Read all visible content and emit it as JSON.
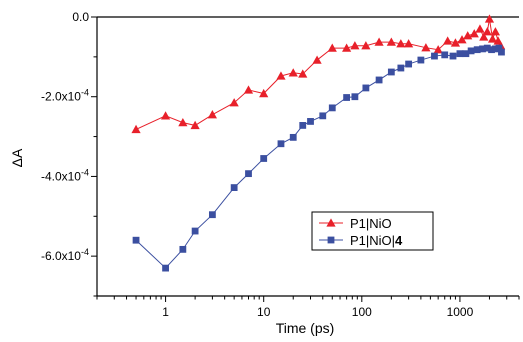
{
  "chart_data": {
    "type": "scatter",
    "title": "",
    "xlabel": "Time (ps)",
    "ylabel": "ΔA",
    "x_scale": "log",
    "xlim": [
      0.2,
      4000
    ],
    "ylim": [
      -0.0007,
      0.0
    ],
    "x_ticks": [
      {
        "value": 1,
        "label": "1"
      },
      {
        "value": 10,
        "label": "10"
      },
      {
        "value": 100,
        "label": "100"
      },
      {
        "value": 1000,
        "label": "1000"
      }
    ],
    "y_ticks": [
      {
        "value": 0.0,
        "label": "0.0"
      },
      {
        "value": -0.0002,
        "label": "-2.0x10-4",
        "base": "-2.0x10",
        "exp": "-4"
      },
      {
        "value": -0.0004,
        "label": "-4.0x10-4",
        "base": "-4.0x10",
        "exp": "-4"
      },
      {
        "value": -0.0006,
        "label": "-6.0x10-4",
        "base": "-6.0x10",
        "exp": "-4"
      }
    ],
    "grid": false,
    "legend_position": "center-right",
    "series": [
      {
        "name": "P1|NiO",
        "color": "#e8202a",
        "marker": "triangle",
        "points": [
          [
            0.5,
            -0.000282
          ],
          [
            1.0,
            -0.000248
          ],
          [
            1.5,
            -0.000265
          ],
          [
            2.0,
            -0.000272
          ],
          [
            3.0,
            -0.000245
          ],
          [
            5.0,
            -0.000215
          ],
          [
            7.0,
            -0.000183
          ],
          [
            10.0,
            -0.000192
          ],
          [
            15.0,
            -0.000148
          ],
          [
            20.0,
            -0.00014
          ],
          [
            25.0,
            -0.000143
          ],
          [
            35.0,
            -0.000108
          ],
          [
            50.0,
            -7.8e-05
          ],
          [
            70.0,
            -7.8e-05
          ],
          [
            85.0,
            -7.2e-05
          ],
          [
            110.0,
            -7.2e-05
          ],
          [
            150.0,
            -6.3e-05
          ],
          [
            200.0,
            -6.3e-05
          ],
          [
            250.0,
            -6.7e-05
          ],
          [
            300.0,
            -6.7e-05
          ],
          [
            450.0,
            -7.7e-05
          ],
          [
            600.0,
            -8.2e-05
          ],
          [
            750.0,
            -6e-05
          ],
          [
            900.0,
            -6.5e-05
          ],
          [
            1050.0,
            -5.7e-05
          ],
          [
            1200.0,
            -4.7e-05
          ],
          [
            1400.0,
            -4.2e-05
          ],
          [
            1600.0,
            -3e-05
          ],
          [
            1750.0,
            -5e-05
          ],
          [
            1900.0,
            -3.7e-05
          ],
          [
            2000.0,
            -5e-06
          ],
          [
            2150.0,
            -5.5e-05
          ],
          [
            2300.0,
            -3.7e-05
          ],
          [
            2450.0,
            -6e-05
          ],
          [
            2600.0,
            -7.2e-05
          ]
        ]
      },
      {
        "name": "P1|NiO|4",
        "name_plain": "P1|NiO|",
        "name_bold": "4",
        "color": "#3b4fa0",
        "marker": "square",
        "points": [
          [
            0.5,
            -0.00056
          ],
          [
            1.0,
            -0.00063
          ],
          [
            1.5,
            -0.000583
          ],
          [
            2.0,
            -0.000537
          ],
          [
            3.0,
            -0.000496
          ],
          [
            5.0,
            -0.000428
          ],
          [
            7.0,
            -0.000393
          ],
          [
            10.0,
            -0.000355
          ],
          [
            15.0,
            -0.000318
          ],
          [
            20.0,
            -0.000302
          ],
          [
            25.0,
            -0.000272
          ],
          [
            30.0,
            -0.000262
          ],
          [
            40.0,
            -0.000248
          ],
          [
            50.0,
            -0.000228
          ],
          [
            70.0,
            -0.000202
          ],
          [
            85.0,
            -0.0002
          ],
          [
            110.0,
            -0.000178
          ],
          [
            150.0,
            -0.000158
          ],
          [
            200.0,
            -0.000138
          ],
          [
            250.0,
            -0.000128
          ],
          [
            300.0,
            -0.000118
          ],
          [
            400.0,
            -0.000108
          ],
          [
            550.0,
            -9.8e-05
          ],
          [
            700.0,
            -9.5e-05
          ],
          [
            850.0,
            -9.8e-05
          ],
          [
            1000.0,
            -9.2e-05
          ],
          [
            1150.0,
            -9.2e-05
          ],
          [
            1300.0,
            -8.5e-05
          ],
          [
            1500.0,
            -8.2e-05
          ],
          [
            1700.0,
            -8e-05
          ],
          [
            1900.0,
            -7.8e-05
          ],
          [
            2100.0,
            -8.2e-05
          ],
          [
            2300.0,
            -8e-05
          ],
          [
            2500.0,
            -7.8e-05
          ],
          [
            2650.0,
            -8.8e-05
          ]
        ]
      }
    ]
  }
}
